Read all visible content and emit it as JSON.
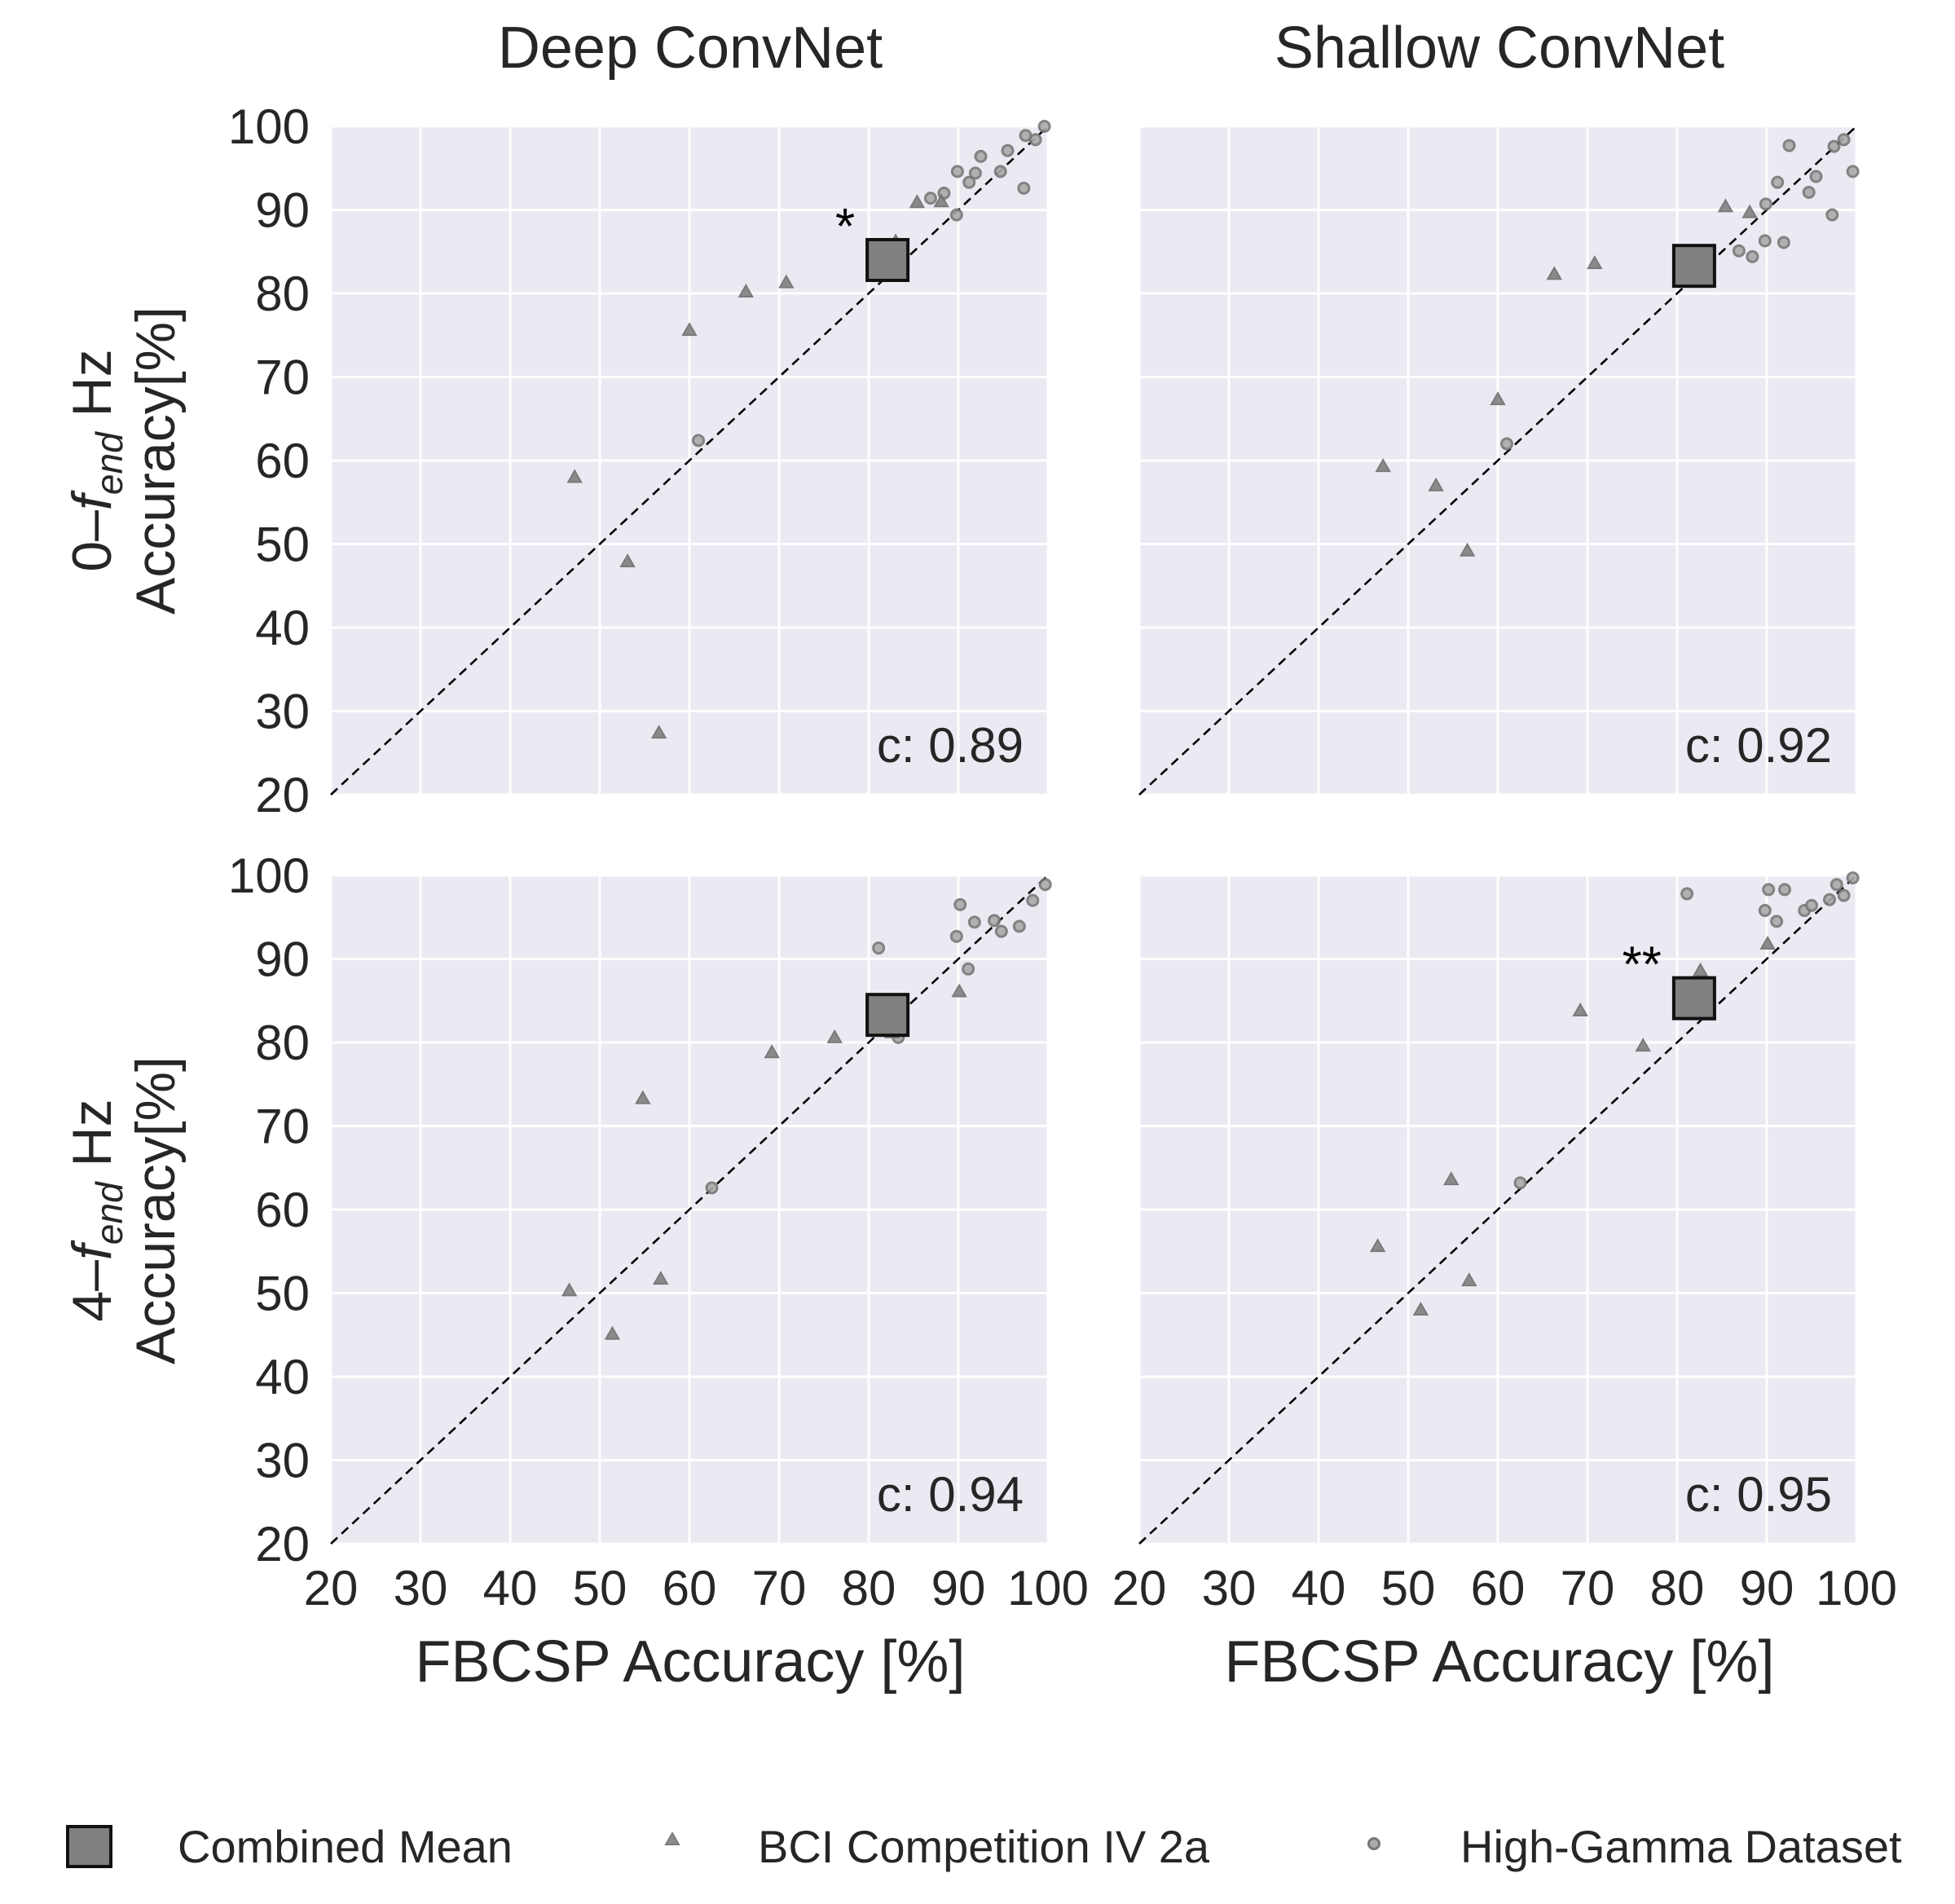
{
  "chart_data": {
    "type": "scatter",
    "column_titles": [
      "Deep ConvNet",
      "Shallow ConvNet"
    ],
    "row_labels": [
      {
        "prefix": "0–",
        "f": "f",
        "sub": "end",
        "suffix": " Hz",
        "line2": "Accuracy[%]"
      },
      {
        "prefix": "4–",
        "f": "f",
        "sub": "end",
        "suffix": " Hz",
        "line2": "Accuracy[%]"
      }
    ],
    "xlabel": "FBCSP Accuracy [%]",
    "xlim": [
      20,
      100
    ],
    "ylim": [
      20,
      100
    ],
    "ticks": [
      20,
      30,
      40,
      50,
      60,
      70,
      80,
      90,
      100
    ],
    "tick_labels": [
      "20",
      "30",
      "40",
      "50",
      "60",
      "70",
      "80",
      "90",
      "100"
    ],
    "grid": true,
    "diagonal": true,
    "legend": {
      "placement": "bottom",
      "entries": [
        "Combined Mean",
        "BCI Competition IV 2a",
        "High-Gamma Dataset"
      ]
    },
    "colors": {
      "marker": "#808080",
      "background": "#eaeaf2",
      "grid": "#ffffff"
    },
    "panels": [
      {
        "column": "Deep ConvNet",
        "row": "0–fend Hz",
        "correlation_label": "c: 0.89",
        "significance": "*",
        "combined_mean": {
          "x": 82.1,
          "y": 84.0
        },
        "bci_2a": [
          [
            47.2,
            58.0
          ],
          [
            53.1,
            47.9
          ],
          [
            56.6,
            27.4
          ],
          [
            60.0,
            75.6
          ],
          [
            66.3,
            80.2
          ],
          [
            70.8,
            81.3
          ],
          [
            83.0,
            86.2
          ],
          [
            85.4,
            90.9
          ],
          [
            88.1,
            91.0
          ]
        ],
        "high_gamma": [
          [
            61.0,
            62.4
          ],
          [
            86.9,
            91.4
          ],
          [
            88.4,
            92.0
          ],
          [
            89.8,
            89.4
          ],
          [
            89.9,
            94.6
          ],
          [
            91.2,
            93.3
          ],
          [
            91.9,
            94.4
          ],
          [
            92.5,
            96.4
          ],
          [
            94.7,
            94.6
          ],
          [
            95.5,
            97.1
          ],
          [
            97.3,
            92.6
          ],
          [
            97.5,
            98.9
          ],
          [
            98.6,
            98.4
          ],
          [
            99.6,
            100.0
          ]
        ]
      },
      {
        "column": "Shallow ConvNet",
        "row": "0–fend Hz",
        "correlation_label": "c: 0.92",
        "significance": "",
        "combined_mean": {
          "x": 81.9,
          "y": 83.3
        },
        "bci_2a": [
          [
            47.2,
            59.3
          ],
          [
            53.1,
            57.0
          ],
          [
            56.6,
            49.2
          ],
          [
            60.0,
            67.3
          ],
          [
            66.3,
            82.3
          ],
          [
            70.8,
            83.6
          ],
          [
            83.0,
            84.8
          ],
          [
            85.4,
            90.4
          ],
          [
            88.1,
            89.7
          ]
        ],
        "high_gamma": [
          [
            61.0,
            62.0
          ],
          [
            86.9,
            85.1
          ],
          [
            88.4,
            84.4
          ],
          [
            89.8,
            86.3
          ],
          [
            89.9,
            90.7
          ],
          [
            91.2,
            93.3
          ],
          [
            91.9,
            86.1
          ],
          [
            92.5,
            97.7
          ],
          [
            94.7,
            92.1
          ],
          [
            95.5,
            94.0
          ],
          [
            97.3,
            89.4
          ],
          [
            97.5,
            97.6
          ],
          [
            98.6,
            98.4
          ],
          [
            99.6,
            94.6
          ]
        ]
      },
      {
        "column": "Deep ConvNet",
        "row": "4–fend Hz",
        "correlation_label": "c: 0.94",
        "significance": "",
        "combined_mean": {
          "x": 82.1,
          "y": 83.3
        },
        "bci_2a": [
          [
            46.6,
            50.3
          ],
          [
            51.4,
            45.1
          ],
          [
            54.8,
            73.3
          ],
          [
            56.8,
            51.7
          ],
          [
            69.2,
            78.8
          ],
          [
            76.2,
            80.6
          ],
          [
            82.6,
            81.2
          ],
          [
            83.1,
            82.9
          ],
          [
            90.1,
            86.1
          ]
        ],
        "high_gamma": [
          [
            62.5,
            62.6
          ],
          [
            81.1,
            91.3
          ],
          [
            83.3,
            80.6
          ],
          [
            89.8,
            92.7
          ],
          [
            90.2,
            96.5
          ],
          [
            91.1,
            88.8
          ],
          [
            91.8,
            94.4
          ],
          [
            94.8,
            93.3
          ],
          [
            94.0,
            94.6
          ],
          [
            96.8,
            93.9
          ],
          [
            98.3,
            97.0
          ],
          [
            99.7,
            98.9
          ]
        ]
      },
      {
        "column": "Shallow ConvNet",
        "row": "4–fend Hz",
        "correlation_label": "c: 0.95",
        "significance": "**",
        "combined_mean": {
          "x": 81.9,
          "y": 85.3
        },
        "bci_2a": [
          [
            46.6,
            55.6
          ],
          [
            51.4,
            48.0
          ],
          [
            54.8,
            63.6
          ],
          [
            56.8,
            51.5
          ],
          [
            69.2,
            83.8
          ],
          [
            76.2,
            79.6
          ],
          [
            82.6,
            88.6
          ],
          [
            83.1,
            85.0
          ],
          [
            83.5,
            83.3
          ],
          [
            90.1,
            91.8
          ]
        ],
        "high_gamma": [
          [
            62.5,
            63.2
          ],
          [
            81.1,
            97.8
          ],
          [
            89.8,
            95.8
          ],
          [
            90.2,
            98.3
          ],
          [
            91.1,
            94.5
          ],
          [
            92.0,
            98.3
          ],
          [
            94.2,
            95.8
          ],
          [
            95.0,
            96.4
          ],
          [
            97.0,
            97.1
          ],
          [
            97.8,
            98.9
          ],
          [
            98.6,
            97.6
          ],
          [
            99.6,
            99.7
          ]
        ]
      }
    ]
  }
}
